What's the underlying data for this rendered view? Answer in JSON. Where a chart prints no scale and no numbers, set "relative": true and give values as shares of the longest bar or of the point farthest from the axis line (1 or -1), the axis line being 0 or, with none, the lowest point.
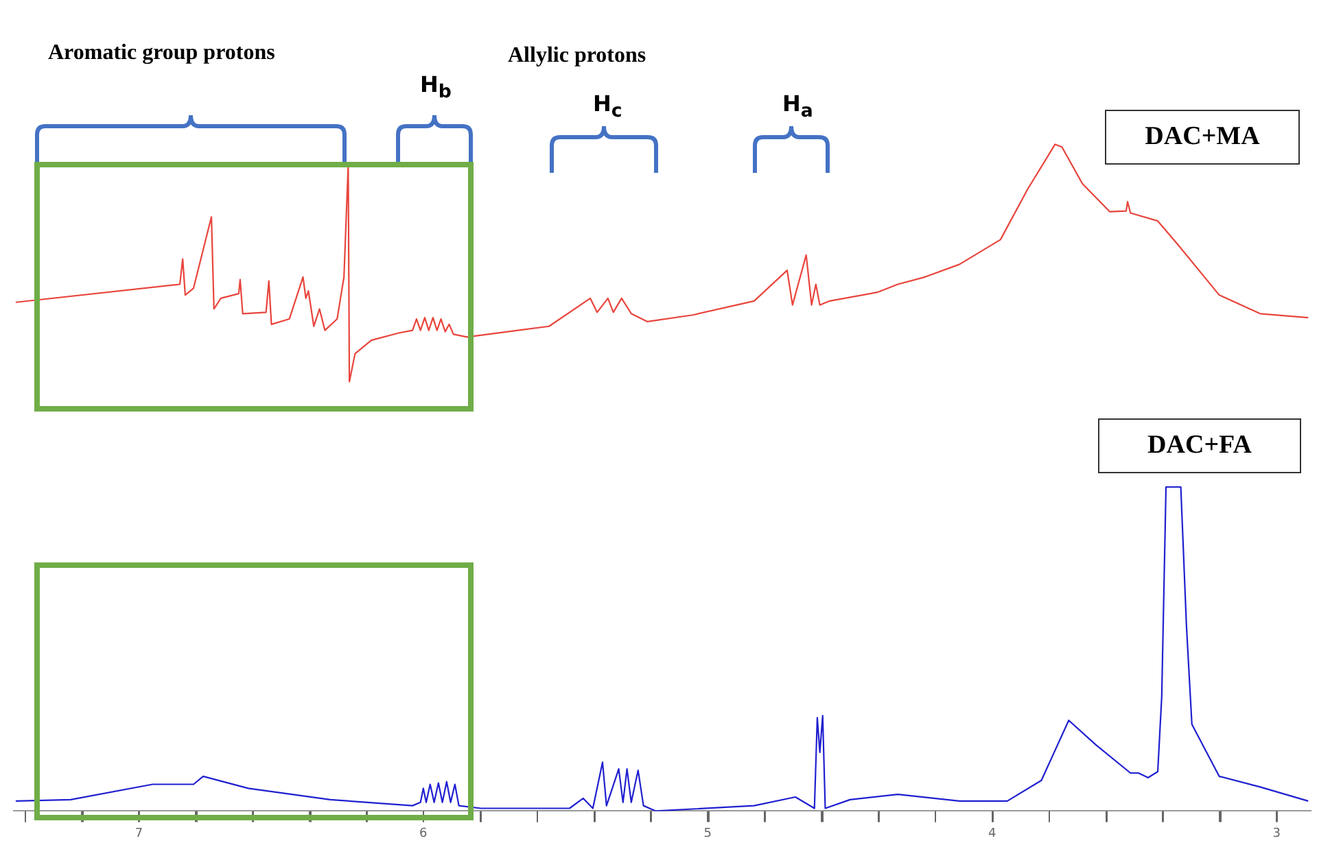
{
  "chart_data": {
    "type": "line",
    "relative": true,
    "grid": false,
    "legend": false,
    "marker": "none",
    "line_style": "solid",
    "xlim": [
      7.44,
      2.88
    ],
    "xticks": [
      {
        "value": 7.4,
        "label": null
      },
      {
        "value": 7.2,
        "label": null
      },
      7,
      {
        "value": 6.8,
        "label": null
      },
      {
        "value": 6.6,
        "label": null
      },
      {
        "value": 6.4,
        "label": null
      },
      {
        "value": 6.2,
        "label": null
      },
      6,
      {
        "value": 5.8,
        "label": null
      },
      {
        "value": 5.6,
        "label": null
      },
      {
        "value": 5.4,
        "label": null
      },
      {
        "value": 5.2,
        "label": null
      },
      5,
      {
        "value": 4.8,
        "label": null
      },
      {
        "value": 4.6,
        "label": null
      },
      {
        "value": 4.4,
        "label": null
      },
      {
        "value": 4.2,
        "label": null
      },
      4,
      {
        "value": 3.8,
        "label": null
      },
      {
        "value": 3.6,
        "label": null
      },
      {
        "value": 3.4,
        "label": null
      },
      {
        "value": 3.2,
        "label": null
      },
      3
    ],
    "annotations": [
      "Aromatic group protons",
      "Allylic protons",
      "H$_{b}$",
      "H$_{c}$",
      "H$_{a}$"
    ],
    "series": [
      {
        "name": "DAC+MA",
        "color": "#e8453c",
        "x": [
          7.433,
          6.856,
          6.846,
          6.837,
          6.808,
          6.745,
          6.736,
          6.712,
          6.649,
          6.644,
          6.635,
          6.553,
          6.543,
          6.534,
          6.471,
          6.423,
          6.413,
          6.404,
          6.385,
          6.365,
          6.346,
          6.303,
          6.279,
          6.264,
          6.26,
          6.24,
          6.183,
          6.087,
          6.038,
          6.024,
          6.01,
          5.995,
          5.981,
          5.966,
          5.952,
          5.938,
          5.923,
          5.909,
          5.894,
          5.846,
          5.558,
          5.413,
          5.389,
          5.351,
          5.332,
          5.303,
          5.269,
          5.212,
          5.053,
          4.837,
          4.721,
          4.702,
          4.654,
          4.635,
          4.62,
          4.606,
          4.572,
          4.404,
          4.332,
          4.236,
          4.115,
          3.971,
          3.875,
          3.779,
          3.755,
          3.683,
          3.587,
          3.529,
          3.524,
          3.514,
          3.418,
          3.346,
          3.202,
          3.058,
          2.889
        ],
        "values": [
          0.763,
          0.79,
          0.828,
          0.774,
          0.784,
          0.891,
          0.753,
          0.769,
          0.776,
          0.797,
          0.746,
          0.748,
          0.795,
          0.73,
          0.738,
          0.801,
          0.769,
          0.78,
          0.727,
          0.753,
          0.721,
          0.738,
          0.801,
          0.969,
          0.644,
          0.686,
          0.706,
          0.717,
          0.721,
          0.738,
          0.721,
          0.74,
          0.721,
          0.74,
          0.721,
          0.738,
          0.719,
          0.73,
          0.715,
          0.711,
          0.727,
          0.769,
          0.748,
          0.769,
          0.748,
          0.769,
          0.746,
          0.734,
          0.744,
          0.765,
          0.811,
          0.759,
          0.834,
          0.759,
          0.79,
          0.759,
          0.765,
          0.778,
          0.79,
          0.801,
          0.82,
          0.857,
          0.933,
          1,
          0.996,
          0.941,
          0.899,
          0.9,
          0.914,
          0.897,
          0.885,
          0.849,
          0.774,
          0.746,
          0.74
        ]
      },
      {
        "name": "DAC+FA",
        "color": "#2020d0",
        "x": [
          7.433,
          7.24,
          6.952,
          6.808,
          6.774,
          6.615,
          6.327,
          6.038,
          6.01,
          6.0,
          5.99,
          5.976,
          5.962,
          5.947,
          5.933,
          5.918,
          5.904,
          5.889,
          5.875,
          5.798,
          5.486,
          5.438,
          5.404,
          5.37,
          5.356,
          5.313,
          5.298,
          5.284,
          5.269,
          5.245,
          5.226,
          5.183,
          4.837,
          4.692,
          4.625,
          4.615,
          4.606,
          4.596,
          4.587,
          4.5,
          4.332,
          4.115,
          3.947,
          3.827,
          3.731,
          3.635,
          3.514,
          3.486,
          3.452,
          3.418,
          3.404,
          3.389,
          3.337,
          3.317,
          3.298,
          3.202,
          3.058,
          2.889
        ],
        "values": [
          0.015,
          0.017,
          0.04,
          0.04,
          0.052,
          0.034,
          0.017,
          0.008,
          0.013,
          0.034,
          0.013,
          0.04,
          0.013,
          0.042,
          0.013,
          0.044,
          0.013,
          0.04,
          0.008,
          0.004,
          0.004,
          0.019,
          0.004,
          0.073,
          0.008,
          0.063,
          0.013,
          0.063,
          0.013,
          0.061,
          0.008,
          0,
          0.008,
          0.021,
          0.004,
          0.14,
          0.088,
          0.143,
          0.004,
          0.017,
          0.025,
          0.015,
          0.015,
          0.046,
          0.136,
          0.099,
          0.057,
          0.057,
          0.05,
          0.059,
          0.172,
          0.486,
          0.486,
          0.277,
          0.13,
          0.052,
          0.036,
          0.015
        ]
      }
    ]
  }
}
